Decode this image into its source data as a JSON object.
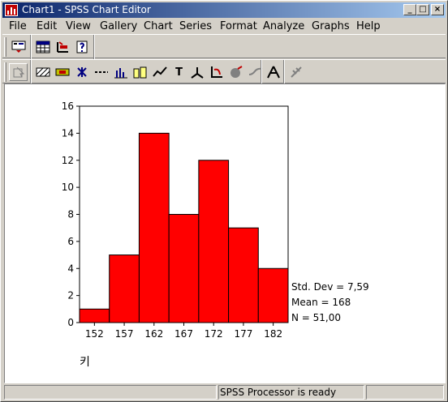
{
  "window": {
    "title": "Chart1 - SPSS Chart Editor"
  },
  "title_buttons": {
    "minimize": "_",
    "maximize": "□",
    "close": "×"
  },
  "menu": [
    {
      "label": "File"
    },
    {
      "label": "Edit"
    },
    {
      "label": "View"
    },
    {
      "label": "Gallery"
    },
    {
      "label": "Chart"
    },
    {
      "label": "Series"
    },
    {
      "label": "Format"
    },
    {
      "label": "Analyze"
    },
    {
      "label": "Graphs"
    },
    {
      "label": "Help"
    }
  ],
  "toolbar1": {
    "icons": [
      "dialog-recall-icon",
      "data-editor-icon",
      "goto-case-icon",
      "variables-info-icon"
    ]
  },
  "toolbar2": {
    "icons": [
      "point-select-icon",
      "fill-pattern-icon",
      "color-icon",
      "marker-icon",
      "line-style-icon",
      "bar-style-icon",
      "bar-label-icon",
      "interpolation-icon",
      "text-icon",
      "axis-icon",
      "rotate-icon",
      "3d-rotation-icon",
      "swap-axes-icon",
      "explode-slice-icon",
      "break-line-icon"
    ],
    "text_glyph": "T"
  },
  "chart_data": {
    "type": "bar",
    "subtype": "histogram",
    "bin_width": 5,
    "categories": [
      "152",
      "157",
      "162",
      "167",
      "172",
      "177",
      "182"
    ],
    "values": [
      1,
      5,
      14,
      8,
      12,
      7,
      4
    ],
    "ylim": [
      0,
      16
    ],
    "yticks": [
      "0",
      "2",
      "4",
      "6",
      "8",
      "10",
      "12",
      "14",
      "16"
    ],
    "xlabel": "키",
    "stats": [
      "Std. Dev = 7,59",
      "Mean = 168",
      "N = 51,00"
    ],
    "bar_color": "#ff0000",
    "grid": false
  },
  "status": {
    "text": "SPSS Processor  is ready"
  }
}
